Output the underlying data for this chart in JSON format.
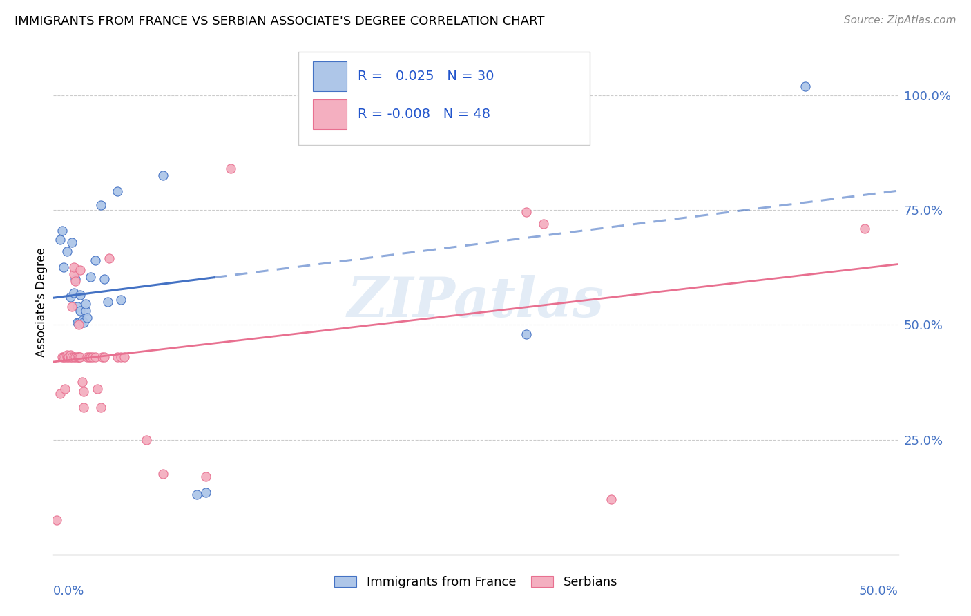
{
  "title": "IMMIGRANTS FROM FRANCE VS SERBIAN ASSOCIATE'S DEGREE CORRELATION CHART",
  "source": "Source: ZipAtlas.com",
  "ylabel": "Associate's Degree",
  "x_range": [
    0.0,
    0.5
  ],
  "y_range": [
    0.0,
    1.1
  ],
  "blue_R": "0.025",
  "blue_N": 30,
  "pink_R": "-0.008",
  "pink_N": 48,
  "blue_color": "#aec6e8",
  "pink_color": "#f4afc0",
  "blue_line_color": "#4472c4",
  "pink_line_color": "#e87090",
  "legend_text_color": "#2255cc",
  "blue_scatter_x": [
    0.004,
    0.005,
    0.006,
    0.008,
    0.01,
    0.011,
    0.012,
    0.013,
    0.014,
    0.014,
    0.015,
    0.016,
    0.016,
    0.017,
    0.018,
    0.019,
    0.019,
    0.02,
    0.022,
    0.025,
    0.028,
    0.03,
    0.032,
    0.038,
    0.04,
    0.065,
    0.085,
    0.09,
    0.28,
    0.445
  ],
  "blue_scatter_y": [
    0.685,
    0.705,
    0.625,
    0.66,
    0.56,
    0.68,
    0.57,
    0.6,
    0.505,
    0.54,
    0.505,
    0.53,
    0.565,
    0.51,
    0.505,
    0.53,
    0.545,
    0.515,
    0.605,
    0.64,
    0.76,
    0.6,
    0.55,
    0.79,
    0.555,
    0.825,
    0.13,
    0.135,
    0.48,
    1.02
  ],
  "pink_scatter_x": [
    0.002,
    0.004,
    0.005,
    0.006,
    0.007,
    0.007,
    0.008,
    0.008,
    0.009,
    0.01,
    0.01,
    0.011,
    0.011,
    0.012,
    0.012,
    0.012,
    0.013,
    0.013,
    0.014,
    0.015,
    0.015,
    0.015,
    0.016,
    0.016,
    0.017,
    0.018,
    0.018,
    0.02,
    0.021,
    0.022,
    0.023,
    0.025,
    0.026,
    0.028,
    0.029,
    0.03,
    0.033,
    0.038,
    0.04,
    0.042,
    0.055,
    0.065,
    0.09,
    0.105,
    0.28,
    0.29,
    0.33,
    0.48
  ],
  "pink_scatter_y": [
    0.075,
    0.35,
    0.43,
    0.43,
    0.36,
    0.43,
    0.43,
    0.435,
    0.43,
    0.43,
    0.435,
    0.43,
    0.54,
    0.43,
    0.61,
    0.625,
    0.43,
    0.595,
    0.43,
    0.43,
    0.43,
    0.5,
    0.43,
    0.62,
    0.375,
    0.355,
    0.32,
    0.43,
    0.43,
    0.43,
    0.43,
    0.43,
    0.36,
    0.32,
    0.43,
    0.43,
    0.645,
    0.43,
    0.43,
    0.43,
    0.25,
    0.175,
    0.17,
    0.84,
    0.745,
    0.72,
    0.12,
    0.71
  ],
  "blue_trend_x": [
    0.0,
    0.095,
    0.095,
    0.5
  ],
  "blue_trend_solid_end": 0.095,
  "pink_trend_y_val": 0.43,
  "y_ticks": [
    0.25,
    0.5,
    0.75,
    1.0
  ],
  "y_tick_labels": [
    "25.0%",
    "50.0%",
    "75.0%",
    "100.0%"
  ],
  "grid_color": "#cccccc",
  "background_color": "#ffffff"
}
